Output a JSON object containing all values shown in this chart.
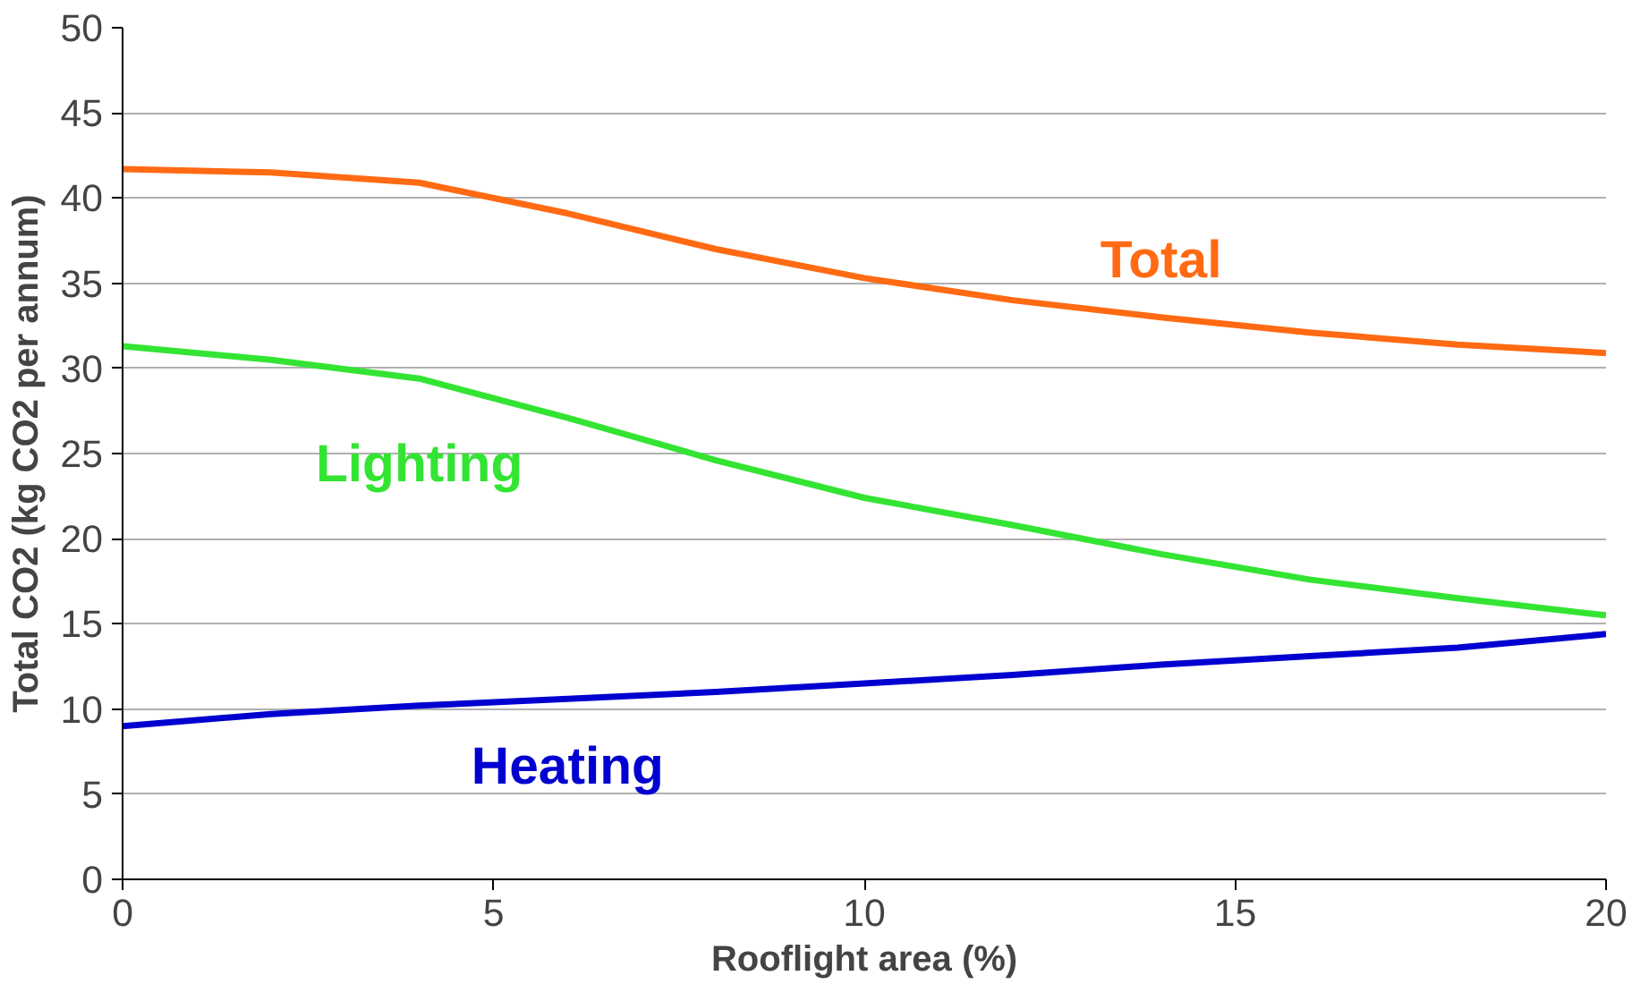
{
  "chart_data": {
    "type": "line",
    "xlabel": "Rooflight area (%)",
    "ylabel": "Total CO2 (kg CO2 per annum)",
    "x": [
      0,
      2,
      4,
      6,
      8,
      10,
      12,
      14,
      16,
      18,
      20
    ],
    "series": [
      {
        "name": "Total",
        "color": "#ff6a13",
        "values": [
          41.7,
          41.5,
          40.9,
          39.1,
          37.0,
          35.3,
          34.0,
          33.0,
          32.1,
          31.4,
          30.9
        ]
      },
      {
        "name": "Lighting",
        "color": "#33e433",
        "values": [
          31.3,
          30.5,
          29.4,
          27.1,
          24.6,
          22.4,
          20.8,
          19.1,
          17.6,
          16.5,
          15.5
        ]
      },
      {
        "name": "Heating",
        "color": "#0000d0",
        "values": [
          9.0,
          9.7,
          10.2,
          10.6,
          11.0,
          11.5,
          12.0,
          12.6,
          13.1,
          13.6,
          14.4
        ]
      }
    ],
    "xlim": [
      0,
      20
    ],
    "ylim": [
      0,
      50
    ],
    "xticks": [
      0,
      5,
      10,
      15,
      20
    ],
    "yticks": [
      0,
      5,
      10,
      15,
      20,
      25,
      30,
      35,
      40,
      45,
      50
    ],
    "grid": "y",
    "marker": "none",
    "line_style": "solid"
  }
}
